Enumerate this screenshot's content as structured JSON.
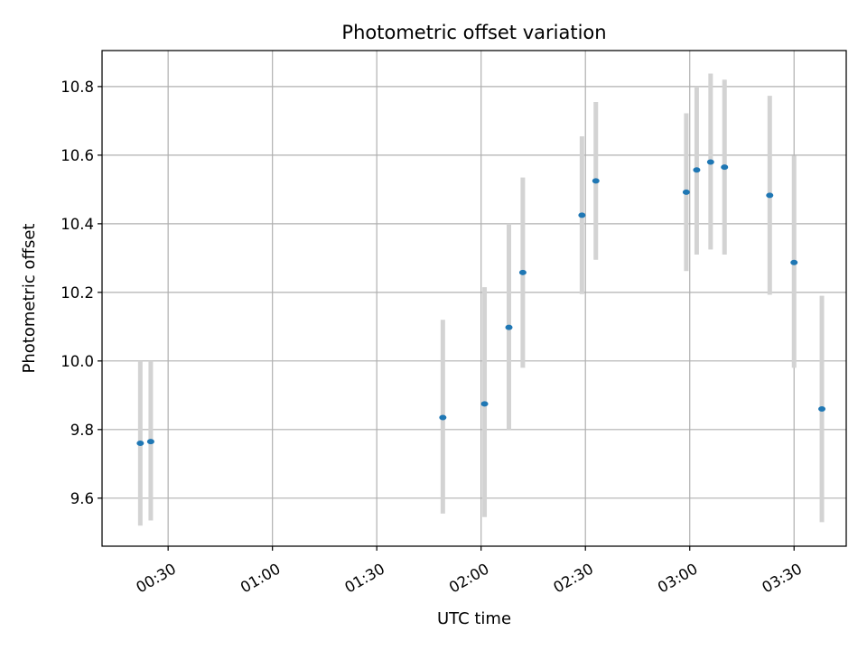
{
  "chart_data": {
    "type": "scatter",
    "title": "Photometric offset variation",
    "xlabel": "UTC time",
    "ylabel": "Photometric offset",
    "xlim": [
      "00:11",
      "03:45"
    ],
    "ylim": [
      9.46,
      10.905
    ],
    "grid": true,
    "x_ticks": [
      "00:30",
      "01:00",
      "01:30",
      "02:00",
      "02:30",
      "03:00",
      "03:30"
    ],
    "y_ticks": [
      "9.6",
      "9.8",
      "10.0",
      "10.2",
      "10.4",
      "10.6",
      "10.8"
    ],
    "series": [
      {
        "marker_color": "#1f77b4",
        "errorbar_color": "#d3d3d3",
        "points": [
          {
            "x": "00:22",
            "y": 9.76,
            "yerr_low": 9.52,
            "yerr_high": 10.0
          },
          {
            "x": "00:25",
            "y": 9.765,
            "yerr_low": 9.535,
            "yerr_high": 10.0
          },
          {
            "x": "01:49",
            "y": 9.835,
            "yerr_low": 9.555,
            "yerr_high": 10.12
          },
          {
            "x": "02:01",
            "y": 9.875,
            "yerr_low": 9.545,
            "yerr_high": 10.215
          },
          {
            "x": "02:08",
            "y": 10.098,
            "yerr_low": 9.8,
            "yerr_high": 10.4
          },
          {
            "x": "02:12",
            "y": 10.258,
            "yerr_low": 9.98,
            "yerr_high": 10.535
          },
          {
            "x": "02:29",
            "y": 10.425,
            "yerr_low": 10.195,
            "yerr_high": 10.655
          },
          {
            "x": "02:33",
            "y": 10.525,
            "yerr_low": 10.295,
            "yerr_high": 10.755
          },
          {
            "x": "02:59",
            "y": 10.492,
            "yerr_low": 10.262,
            "yerr_high": 10.722
          },
          {
            "x": "03:02",
            "y": 10.557,
            "yerr_low": 10.31,
            "yerr_high": 10.8
          },
          {
            "x": "03:06",
            "y": 10.58,
            "yerr_low": 10.325,
            "yerr_high": 10.838
          },
          {
            "x": "03:10",
            "y": 10.565,
            "yerr_low": 10.31,
            "yerr_high": 10.82
          },
          {
            "x": "03:23",
            "y": 10.483,
            "yerr_low": 10.193,
            "yerr_high": 10.773
          },
          {
            "x": "03:30",
            "y": 10.287,
            "yerr_low": 9.98,
            "yerr_high": 10.598
          },
          {
            "x": "03:38",
            "y": 9.86,
            "yerr_low": 9.53,
            "yerr_high": 10.19
          }
        ]
      }
    ]
  }
}
